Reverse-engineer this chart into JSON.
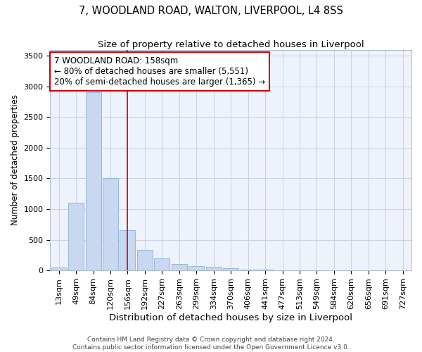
{
  "title": "7, WOODLAND ROAD, WALTON, LIVERPOOL, L4 8SS",
  "subtitle": "Size of property relative to detached houses in Liverpool",
  "xlabel": "Distribution of detached houses by size in Liverpool",
  "ylabel": "Number of detached properties",
  "bar_color": "#c8d8f0",
  "bar_edge_color": "#8ab0d8",
  "background_color": "#eef2fb",
  "grid_color": "#c8d0e0",
  "categories": [
    "13sqm",
    "49sqm",
    "84sqm",
    "120sqm",
    "156sqm",
    "192sqm",
    "227sqm",
    "263sqm",
    "299sqm",
    "334sqm",
    "370sqm",
    "406sqm",
    "441sqm",
    "477sqm",
    "513sqm",
    "549sqm",
    "584sqm",
    "620sqm",
    "656sqm",
    "691sqm",
    "727sqm"
  ],
  "values": [
    50,
    1100,
    2900,
    1500,
    650,
    330,
    195,
    100,
    70,
    55,
    35,
    15,
    10,
    0,
    0,
    0,
    0,
    0,
    0,
    0,
    0
  ],
  "ylim": [
    0,
    3600
  ],
  "yticks": [
    0,
    500,
    1000,
    1500,
    2000,
    2500,
    3000,
    3500
  ],
  "vline_x": 4,
  "vline_color": "#cc0000",
  "annotation_line1": "7 WOODLAND ROAD: 158sqm",
  "annotation_line2": "← 80% of detached houses are smaller (5,551)",
  "annotation_line3": "20% of semi-detached houses are larger (1,365) →",
  "annotation_box_color": "#cc0000",
  "footer_line1": "Contains HM Land Registry data © Crown copyright and database right 2024.",
  "footer_line2": "Contains public sector information licensed under the Open Government Licence v3.0.",
  "title_fontsize": 10.5,
  "subtitle_fontsize": 9.5,
  "xlabel_fontsize": 9.5,
  "ylabel_fontsize": 8.5,
  "tick_fontsize": 8,
  "annot_fontsize": 8.5,
  "footer_fontsize": 6.5
}
